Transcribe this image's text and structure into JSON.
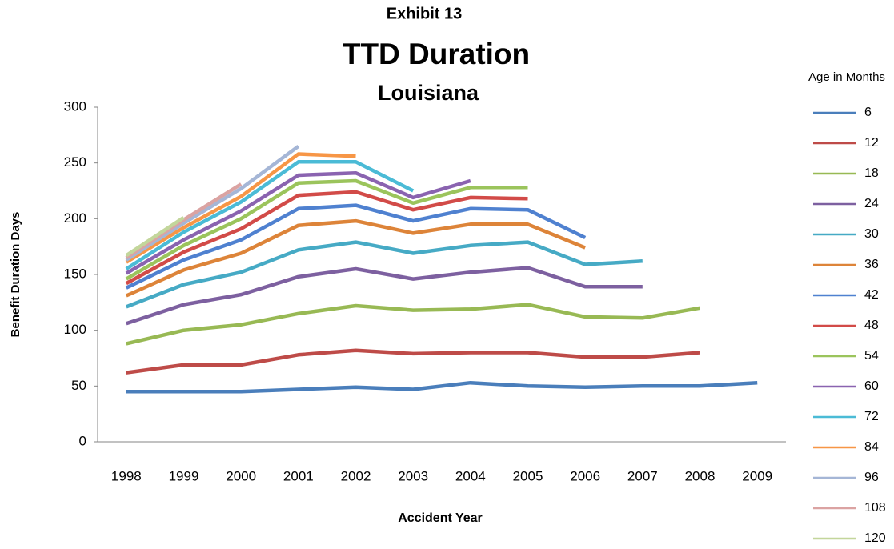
{
  "chart_data": {
    "type": "line",
    "subtitle": "Exhibit 13",
    "title": "TTD Duration",
    "region": "Louisiana",
    "y_label": "Benefit Duration Days",
    "x_label": "Accident Year",
    "legend_title": "Age in Months",
    "legend": "right",
    "grid": false,
    "categories": [
      "1998",
      "1999",
      "2000",
      "2001",
      "2002",
      "2003",
      "2004",
      "2005",
      "2006",
      "2007",
      "2008",
      "2009"
    ],
    "ylim": [
      0,
      300
    ],
    "yticks": [
      0,
      50,
      100,
      150,
      200,
      250,
      300
    ],
    "series": [
      {
        "name": "6",
        "color": "#4a7ebb",
        "values": [
          45,
          45,
          45,
          47,
          49,
          47,
          53,
          50,
          49,
          50,
          50,
          53
        ]
      },
      {
        "name": "12",
        "color": "#be4b48",
        "values": [
          62,
          69,
          69,
          78,
          82,
          79,
          80,
          80,
          76,
          76,
          80,
          null
        ]
      },
      {
        "name": "18",
        "color": "#98b954",
        "values": [
          88,
          100,
          105,
          115,
          122,
          118,
          119,
          123,
          112,
          111,
          120,
          null
        ]
      },
      {
        "name": "24",
        "color": "#7d60a0",
        "values": [
          106,
          123,
          132,
          148,
          155,
          146,
          152,
          156,
          139,
          139,
          null,
          null
        ]
      },
      {
        "name": "30",
        "color": "#46aac5",
        "values": [
          121,
          141,
          152,
          172,
          179,
          169,
          176,
          179,
          159,
          162,
          null,
          null
        ]
      },
      {
        "name": "36",
        "color": "#dd8439",
        "values": [
          131,
          154,
          169,
          194,
          198,
          187,
          195,
          195,
          174,
          null,
          null,
          null
        ]
      },
      {
        "name": "42",
        "color": "#4f81d0",
        "values": [
          138,
          163,
          181,
          209,
          212,
          198,
          209,
          208,
          183,
          null,
          null,
          null
        ]
      },
      {
        "name": "48",
        "color": "#d24b48",
        "values": [
          142,
          170,
          191,
          221,
          224,
          208,
          219,
          218,
          null,
          null,
          null,
          null
        ]
      },
      {
        "name": "54",
        "color": "#9bc45c",
        "values": [
          146,
          176,
          200,
          232,
          234,
          214,
          228,
          228,
          null,
          null,
          null,
          null
        ]
      },
      {
        "name": "60",
        "color": "#8a63b0",
        "values": [
          151,
          181,
          207,
          239,
          241,
          219,
          234,
          null,
          null,
          null,
          null,
          null
        ]
      },
      {
        "name": "72",
        "color": "#4bbbd6",
        "values": [
          155,
          188,
          215,
          251,
          251,
          225,
          null,
          null,
          null,
          null,
          null,
          null
        ]
      },
      {
        "name": "84",
        "color": "#f79646",
        "values": [
          161,
          192,
          220,
          258,
          256,
          null,
          null,
          null,
          null,
          null,
          null,
          null
        ]
      },
      {
        "name": "96",
        "color": "#a5b6d6",
        "values": [
          163,
          196,
          227,
          265,
          null,
          null,
          null,
          null,
          null,
          null,
          null,
          null
        ]
      },
      {
        "name": "108",
        "color": "#dba3a2",
        "values": [
          165,
          199,
          231,
          null,
          null,
          null,
          null,
          null,
          null,
          null,
          null,
          null
        ]
      },
      {
        "name": "120",
        "color": "#c3d69b",
        "values": [
          167,
          201,
          null,
          null,
          null,
          null,
          null,
          null,
          null,
          null,
          null,
          null
        ]
      }
    ]
  }
}
